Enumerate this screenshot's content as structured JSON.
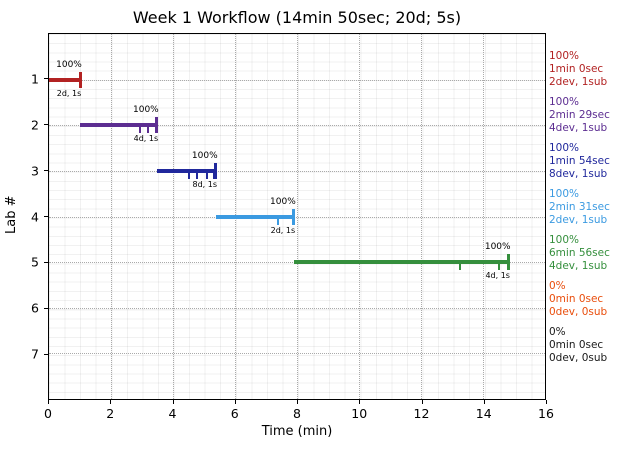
{
  "title": "Week 1 Workflow (14min 50sec; 20d; 5s)",
  "chart_data": {
    "type": "gantt",
    "title": "Week 1 Workflow (14min 50sec; 20d; 5s)",
    "xlabel": "Time (min)",
    "ylabel": "Lab #",
    "xlim": [
      0,
      16
    ],
    "xticks": [
      0,
      2,
      4,
      6,
      8,
      10,
      12,
      14,
      16
    ],
    "ylim": [
      0,
      8
    ],
    "yticks": [
      1,
      2,
      3,
      4,
      5,
      6,
      7
    ],
    "grid": {
      "major": "dotted gray",
      "minor": "faint solid",
      "x_minor_step": 0.5,
      "y_minor_step": 0.2
    },
    "legend_position": "right",
    "rows": [
      {
        "lab": 1,
        "color": "#b22222",
        "start": 0.0,
        "end": 1.0,
        "dev_ticks": [],
        "percent_label": "100%",
        "annotation": "2d, 1s",
        "summary": [
          "100%",
          "1min 0sec",
          "2dev, 1sub"
        ]
      },
      {
        "lab": 2,
        "color": "#5c2d91",
        "start": 1.0,
        "end": 3.48,
        "dev_ticks": [
          2.94,
          3.18
        ],
        "percent_label": "100%",
        "annotation": "4d, 1s",
        "summary": [
          "100%",
          "2min 29sec",
          "4dev, 1sub"
        ]
      },
      {
        "lab": 3,
        "color": "#20289c",
        "start": 3.48,
        "end": 5.38,
        "dev_ticks": [
          4.53,
          4.79,
          5.11,
          5.31
        ],
        "percent_label": "100%",
        "annotation": "8d, 1s",
        "summary": [
          "100%",
          "1min 54sec",
          "8dev, 1sub"
        ]
      },
      {
        "lab": 4,
        "color": "#3b9ae1",
        "start": 5.38,
        "end": 7.9,
        "dev_ticks": [
          7.4
        ],
        "percent_label": "100%",
        "annotation": "2d, 1s",
        "summary": [
          "100%",
          "2min 31sec",
          "2dev, 1sub"
        ]
      },
      {
        "lab": 5,
        "color": "#358f3d",
        "start": 7.9,
        "end": 14.83,
        "dev_ticks": [
          13.25,
          14.5
        ],
        "percent_label": "100%",
        "annotation": "4d, 1s",
        "summary": [
          "100%",
          "6min 56sec",
          "4dev, 1sub"
        ]
      },
      {
        "lab": 6,
        "color": "#e94e0d",
        "start": null,
        "end": null,
        "dev_ticks": [],
        "percent_label": null,
        "annotation": null,
        "summary": [
          "0%",
          "0min 0sec",
          "0dev, 0sub"
        ]
      },
      {
        "lab": 7,
        "color": "#1a1a1a",
        "start": null,
        "end": null,
        "dev_ticks": [],
        "percent_label": null,
        "annotation": null,
        "summary": [
          "0%",
          "0min 0sec",
          "0dev, 0sub"
        ]
      }
    ]
  }
}
